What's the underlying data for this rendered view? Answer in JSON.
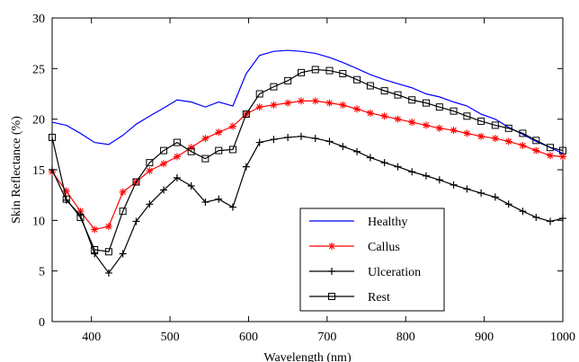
{
  "chart_data": {
    "type": "line",
    "xlabel": "Wavelength (nm)",
    "ylabel": "Skin Reflectance (%)",
    "xlim": [
      350,
      1000
    ],
    "ylim": [
      0,
      30
    ],
    "xticks": [
      400,
      500,
      600,
      700,
      800,
      900,
      1000
    ],
    "yticks": [
      0,
      5,
      10,
      15,
      20,
      25,
      30
    ],
    "legend_position": "bottom-right",
    "x": [
      350,
      368,
      386,
      404,
      422,
      440,
      457,
      474,
      492,
      509,
      527,
      545,
      562,
      580,
      597,
      614,
      632,
      650,
      667,
      685,
      703,
      720,
      738,
      755,
      773,
      790,
      808,
      826,
      843,
      861,
      878,
      896,
      914,
      931,
      949,
      966,
      984,
      1000
    ],
    "series": [
      {
        "name": "Healthy",
        "color": "#0000ff",
        "marker": "none",
        "values": [
          19.7,
          19.4,
          18.6,
          17.7,
          17.5,
          18.4,
          19.5,
          20.3,
          21.1,
          21.9,
          21.7,
          21.2,
          21.7,
          21.3,
          24.5,
          26.3,
          26.7,
          26.8,
          26.7,
          26.5,
          26.1,
          25.6,
          25.0,
          24.4,
          23.9,
          23.5,
          23.1,
          22.5,
          22.2,
          21.7,
          21.3,
          20.5,
          20.0,
          19.2,
          18.5,
          17.8,
          17.2,
          16.6
        ]
      },
      {
        "name": "Callus",
        "color": "#ff0000",
        "marker": "star",
        "values": [
          14.8,
          12.9,
          10.9,
          9.1,
          9.4,
          12.8,
          13.8,
          14.9,
          15.6,
          16.3,
          17.2,
          18.1,
          18.7,
          19.3,
          20.5,
          21.2,
          21.4,
          21.6,
          21.8,
          21.8,
          21.6,
          21.4,
          21.0,
          20.6,
          20.3,
          20.0,
          19.7,
          19.4,
          19.1,
          18.9,
          18.6,
          18.3,
          18.1,
          17.8,
          17.4,
          16.9,
          16.4,
          16.3
        ]
      },
      {
        "name": "Ulceration",
        "color": "#000000",
        "marker": "plus",
        "values": [
          15.0,
          12.0,
          10.5,
          6.7,
          4.8,
          6.7,
          9.9,
          11.6,
          13.0,
          14.2,
          13.4,
          11.8,
          12.1,
          11.3,
          15.3,
          17.7,
          18.0,
          18.2,
          18.3,
          18.1,
          17.8,
          17.3,
          16.8,
          16.2,
          15.7,
          15.3,
          14.8,
          14.4,
          14.0,
          13.5,
          13.1,
          12.7,
          12.3,
          11.6,
          10.9,
          10.3,
          9.9,
          10.2
        ]
      },
      {
        "name": "Rest",
        "color": "#000000",
        "marker": "square",
        "values": [
          18.2,
          12.1,
          10.3,
          7.1,
          6.9,
          10.9,
          13.8,
          15.7,
          16.9,
          17.7,
          16.8,
          16.1,
          16.9,
          17.0,
          20.5,
          22.5,
          23.2,
          23.8,
          24.6,
          24.9,
          24.8,
          24.5,
          23.9,
          23.3,
          22.8,
          22.4,
          21.9,
          21.6,
          21.2,
          20.8,
          20.3,
          19.8,
          19.4,
          19.1,
          18.6,
          17.9,
          17.2,
          16.9
        ]
      }
    ]
  }
}
